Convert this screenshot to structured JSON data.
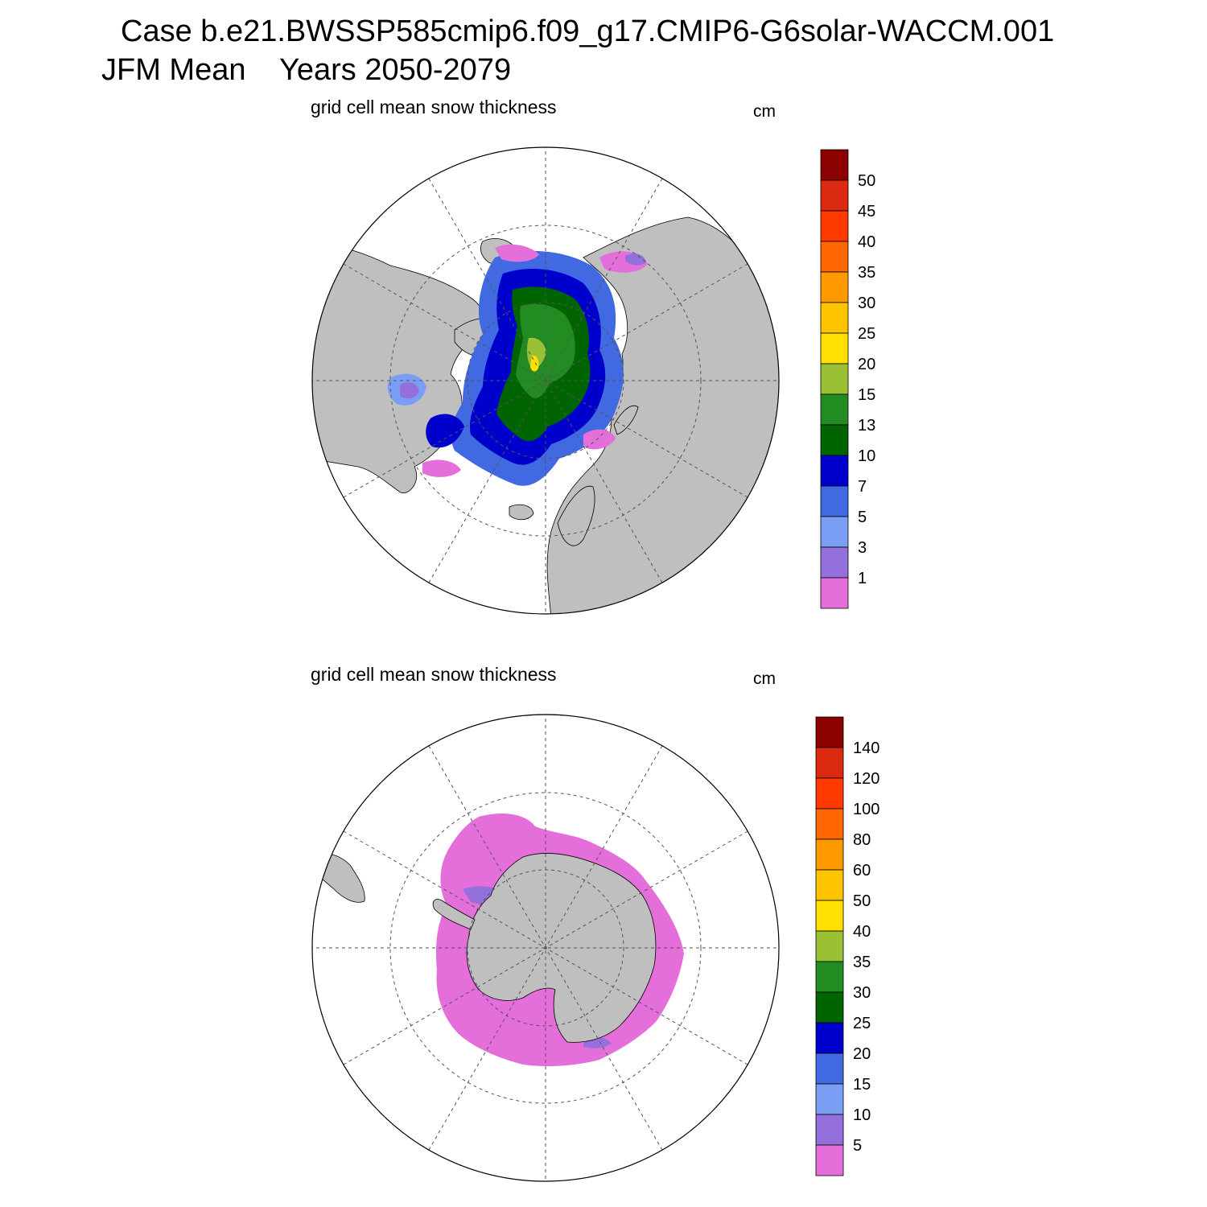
{
  "header": {
    "line1": "Case b.e21.BWSSP585cmip6.f09_g17.CMIP6-G6solar-WACCM.001",
    "line2": "JFM Mean    Years 2050-2079"
  },
  "colors": {
    "land": "#bfbfbf",
    "ocean": "#ffffff",
    "outline": "#000000",
    "grid": "#555555"
  },
  "panels": [
    {
      "label": "grid cell mean snow thickness",
      "unit": "cm",
      "hemisphere": "north",
      "levels": [
        "50",
        "45",
        "40",
        "35",
        "30",
        "25",
        "20",
        "15",
        "13",
        "10",
        "7",
        "5",
        "3",
        "1"
      ],
      "colors": [
        "#8b0000",
        "#dc2a12",
        "#ff3a00",
        "#ff6600",
        "#ff9900",
        "#ffc400",
        "#ffe000",
        "#9ac033",
        "#228b22",
        "#006400",
        "#0000cd",
        "#4169e1",
        "#7b9ef5",
        "#9370db",
        "#e46fdb"
      ]
    },
    {
      "label": "grid cell mean snow thickness",
      "unit": "cm",
      "hemisphere": "south",
      "levels": [
        "140",
        "120",
        "100",
        "80",
        "60",
        "50",
        "40",
        "35",
        "30",
        "25",
        "20",
        "15",
        "10",
        "5"
      ],
      "colors": [
        "#8b0000",
        "#dc2a12",
        "#ff3a00",
        "#ff6600",
        "#ff9900",
        "#ffc400",
        "#ffe000",
        "#9ac033",
        "#228b22",
        "#006400",
        "#0000cd",
        "#4169e1",
        "#7b9ef5",
        "#9370db",
        "#e46fdb"
      ]
    }
  ]
}
